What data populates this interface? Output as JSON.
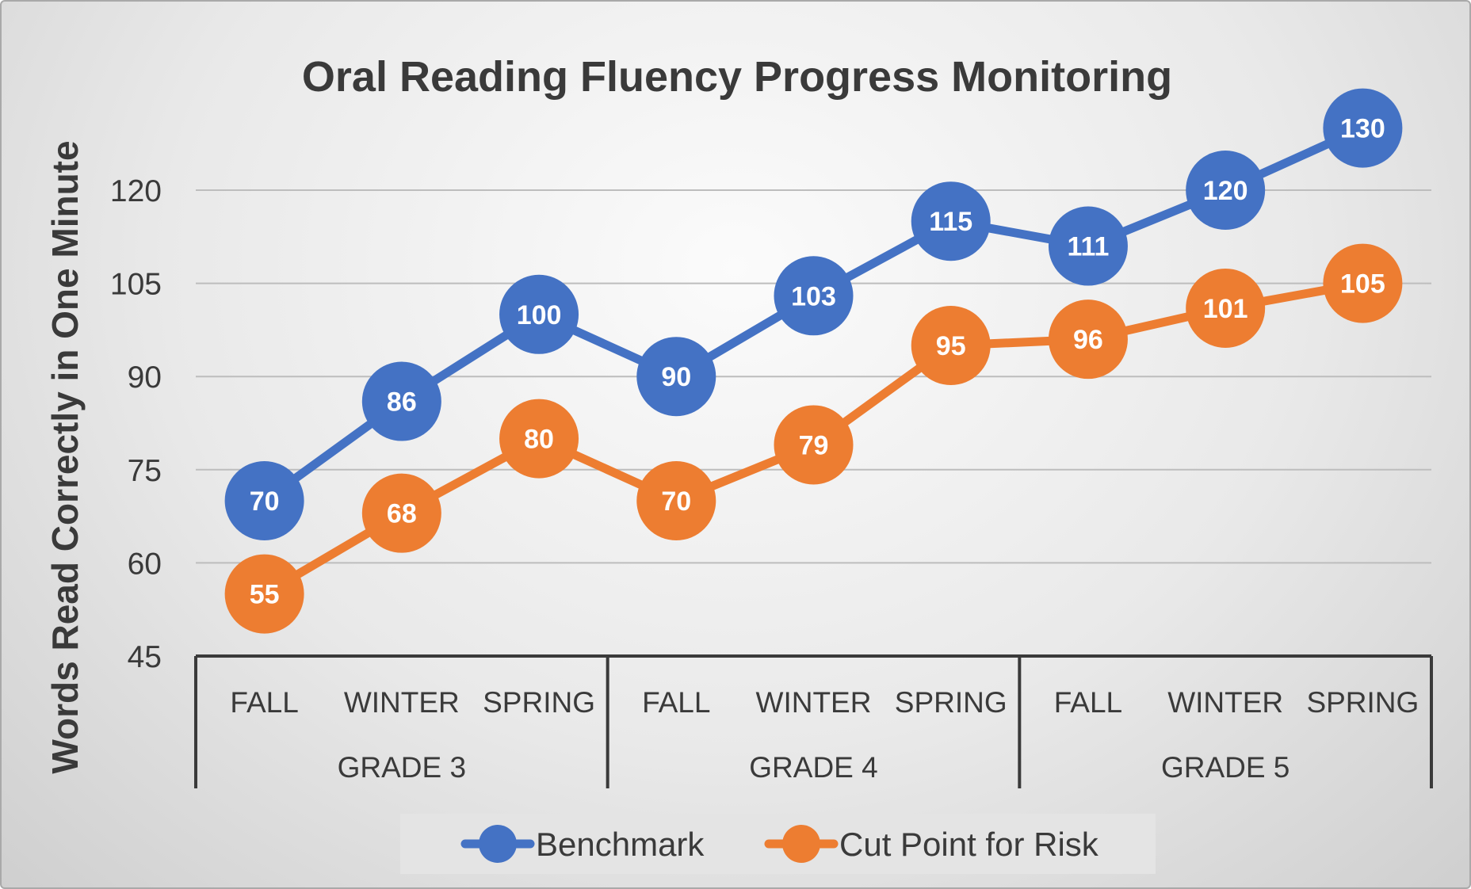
{
  "chart_data": {
    "type": "line",
    "title": "Oral Reading Fluency Progress Monitoring",
    "xlabel": "",
    "ylabel": "Words Read Correctly in One Minute",
    "ylim": [
      45,
      130
    ],
    "yticks": [
      45,
      60,
      75,
      90,
      105,
      120
    ],
    "grid": true,
    "legend_position": "bottom",
    "categories": [
      "FALL",
      "WINTER",
      "SPRING",
      "FALL",
      "WINTER",
      "SPRING",
      "FALL",
      "WINTER",
      "SPRING"
    ],
    "groups": [
      {
        "label": "GRADE 3",
        "span": 3
      },
      {
        "label": "GRADE 4",
        "span": 3
      },
      {
        "label": "GRADE 5",
        "span": 3
      }
    ],
    "series": [
      {
        "name": "Benchmark",
        "color": "#4472c4",
        "values": [
          70,
          86,
          100,
          90,
          103,
          115,
          111,
          120,
          130
        ]
      },
      {
        "name": "Cut Point for Risk",
        "color": "#ed7d31",
        "values": [
          55,
          68,
          80,
          70,
          79,
          95,
          96,
          101,
          105
        ]
      }
    ]
  },
  "colors": {
    "grid": "#bdbdbd",
    "axis": "#3a3a3a",
    "legend_bg": "#e4e4e4"
  }
}
